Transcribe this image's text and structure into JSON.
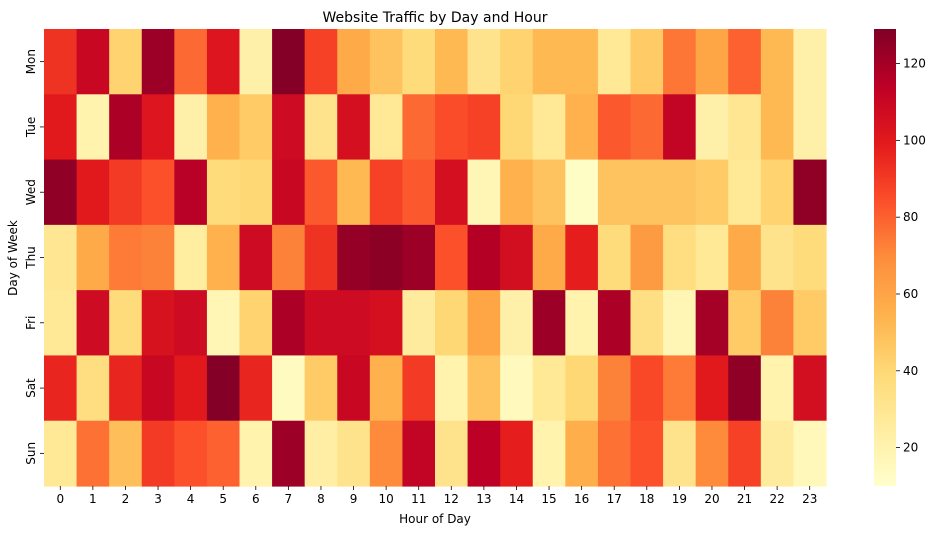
{
  "chart_data": {
    "type": "heatmap",
    "title": "Website Traffic by Day and Hour",
    "xlabel": "Hour of Day",
    "ylabel": "Day of Week",
    "x_categories": [
      "0",
      "1",
      "2",
      "3",
      "4",
      "5",
      "6",
      "7",
      "8",
      "9",
      "10",
      "11",
      "12",
      "13",
      "14",
      "15",
      "16",
      "17",
      "18",
      "19",
      "20",
      "21",
      "22",
      "23"
    ],
    "y_categories": [
      "Mon",
      "Tue",
      "Wed",
      "Thu",
      "Fri",
      "Sat",
      "Sun"
    ],
    "values": [
      [
        92,
        110,
        42,
        122,
        78,
        102,
        22,
        128,
        88,
        58,
        48,
        38,
        52,
        32,
        42,
        52,
        52,
        28,
        45,
        75,
        60,
        80,
        52,
        22
      ],
      [
        100,
        20,
        118,
        102,
        22,
        55,
        45,
        108,
        32,
        105,
        28,
        78,
        85,
        88,
        40,
        28,
        55,
        82,
        78,
        112,
        22,
        30,
        52,
        22
      ],
      [
        125,
        100,
        90,
        84,
        115,
        38,
        40,
        110,
        82,
        52,
        88,
        82,
        105,
        18,
        55,
        48,
        12,
        48,
        48,
        48,
        45,
        28,
        42,
        125
      ],
      [
        30,
        58,
        74,
        72,
        25,
        55,
        108,
        72,
        92,
        124,
        126,
        122,
        84,
        116,
        106,
        58,
        98,
        38,
        64,
        36,
        28,
        58,
        32,
        38
      ],
      [
        28,
        108,
        38,
        104,
        108,
        18,
        42,
        118,
        108,
        108,
        105,
        26,
        40,
        60,
        22,
        122,
        20,
        118,
        35,
        18,
        120,
        45,
        72,
        45
      ],
      [
        96,
        36,
        96,
        110,
        100,
        128,
        96,
        14,
        45,
        110,
        55,
        90,
        20,
        48,
        15,
        28,
        40,
        72,
        86,
        74,
        100,
        125,
        20,
        106
      ],
      [
        28,
        76,
        50,
        90,
        84,
        80,
        20,
        122,
        24,
        32,
        70,
        112,
        32,
        114,
        98,
        20,
        56,
        76,
        84,
        32,
        70,
        88,
        26,
        16
      ]
    ],
    "colorbar": {
      "min": 10,
      "max": 129,
      "ticks": [
        20,
        40,
        60,
        80,
        100,
        120
      ]
    },
    "colormap": "YlOrRd",
    "grid": false
  }
}
